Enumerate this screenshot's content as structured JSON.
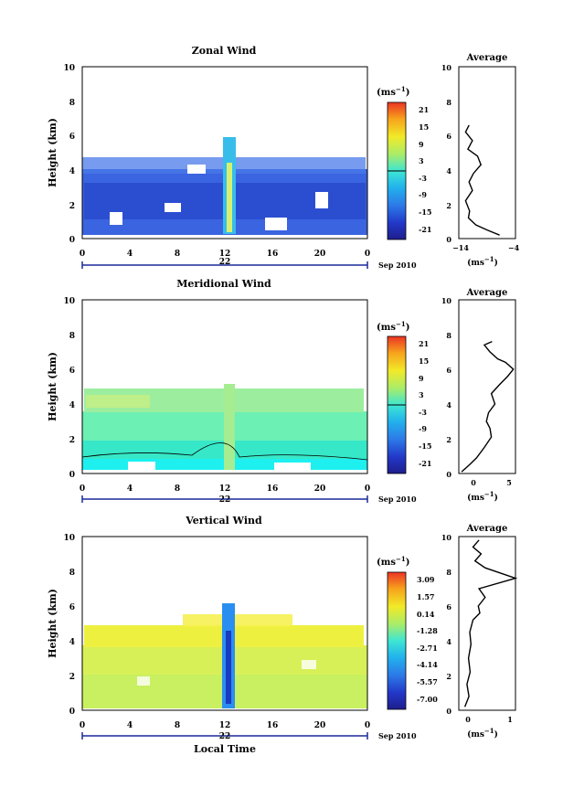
{
  "chart_data": [
    {
      "type": "heatmap",
      "title": "Zonal Wind",
      "ylabel": "Height (km)",
      "ylim": [
        0,
        10
      ],
      "yticks": [
        "0",
        "2",
        "4",
        "6",
        "8",
        "10"
      ],
      "xlim": [
        0,
        24
      ],
      "xticks": [
        "0",
        "4",
        "8",
        "12",
        "16",
        "20",
        "0"
      ],
      "day_label": "22",
      "date_label": "Sep 2010",
      "colorbar": {
        "unit": "(ms",
        "unit_exp": "−1",
        "ticks": [
          "21",
          "15",
          "9",
          "3",
          "-3",
          "-9",
          "-15",
          "-21"
        ]
      },
      "profile": {
        "title": "Average",
        "xlim": [
          -14,
          -4
        ],
        "xticks": [
          "−14",
          "−4"
        ],
        "xlabel": "(ms",
        "xlabel_exp": "−1",
        "points": [
          [
            -6.8,
            0.2
          ],
          [
            -9,
            0.5
          ],
          [
            -11,
            0.8
          ],
          [
            -12.3,
            1.2
          ],
          [
            -12.1,
            1.6
          ],
          [
            -12.8,
            2.2
          ],
          [
            -11.6,
            2.8
          ],
          [
            -12.2,
            3.3
          ],
          [
            -11.4,
            3.8
          ],
          [
            -10.1,
            4.3
          ],
          [
            -10.7,
            4.8
          ],
          [
            -12.4,
            5.2
          ],
          [
            -11.6,
            5.7
          ],
          [
            -12.8,
            6.2
          ],
          [
            -12.2,
            6.6
          ]
        ]
      }
    },
    {
      "type": "heatmap",
      "title": "Meridional Wind",
      "ylabel": "Height (km)",
      "ylim": [
        0,
        10
      ],
      "yticks": [
        "0",
        "2",
        "4",
        "6",
        "8",
        "10"
      ],
      "xlim": [
        0,
        24
      ],
      "xticks": [
        "0",
        "4",
        "8",
        "12",
        "16",
        "20",
        "0"
      ],
      "day_label": "22",
      "date_label": "Sep 2010",
      "colorbar": {
        "unit": "(ms",
        "unit_exp": "−1",
        "ticks": [
          "21",
          "15",
          "9",
          "3",
          "-3",
          "-9",
          "-15",
          "-21"
        ]
      },
      "profile": {
        "title": "Average",
        "xlim": [
          -2,
          6
        ],
        "xticks": [
          "0",
          "5"
        ],
        "xlabel": "(ms",
        "xlabel_exp": "−1",
        "points": [
          [
            -1.6,
            0.1
          ],
          [
            -0.5,
            0.5
          ],
          [
            0.5,
            0.9
          ],
          [
            1.6,
            1.5
          ],
          [
            2.6,
            2.1
          ],
          [
            2.4,
            2.6
          ],
          [
            1.9,
            3.0
          ],
          [
            2.2,
            3.5
          ],
          [
            3.1,
            4.0
          ],
          [
            2.6,
            4.6
          ],
          [
            3.7,
            5.1
          ],
          [
            4.9,
            5.6
          ],
          [
            5.7,
            6.0
          ],
          [
            4.6,
            6.4
          ],
          [
            3.5,
            6.6
          ],
          [
            2.4,
            7.0
          ],
          [
            1.6,
            7.4
          ],
          [
            2.7,
            7.6
          ]
        ]
      }
    },
    {
      "type": "heatmap",
      "title": "Vertical Wind",
      "ylabel": "Height (km)",
      "xlabel": "Local Time",
      "ylim": [
        0,
        10
      ],
      "yticks": [
        "0",
        "2",
        "4",
        "6",
        "8",
        "10"
      ],
      "xlim": [
        0,
        24
      ],
      "xticks": [
        "0",
        "4",
        "8",
        "12",
        "16",
        "20",
        "0"
      ],
      "day_label": "22",
      "date_label": "Sep 2010",
      "colorbar": {
        "unit": "(ms",
        "unit_exp": "−1",
        "ticks": [
          "3.09",
          "1.57",
          "0.14",
          "-1.28",
          "-2.71",
          "-4.14",
          "-5.57",
          "-7.00"
        ]
      },
      "profile": {
        "title": "Average",
        "xlim": [
          -0.2,
          1.2
        ],
        "xticks": [
          "0",
          "1"
        ],
        "xlabel": "(ms",
        "xlabel_exp": "−1",
        "points": [
          [
            -0.05,
            0.2
          ],
          [
            0.05,
            0.8
          ],
          [
            0.0,
            1.5
          ],
          [
            0.08,
            2.2
          ],
          [
            0.04,
            3.0
          ],
          [
            0.1,
            3.8
          ],
          [
            0.07,
            4.5
          ],
          [
            0.15,
            5.2
          ],
          [
            0.32,
            5.6
          ],
          [
            0.28,
            6.0
          ],
          [
            0.45,
            6.5
          ],
          [
            0.3,
            7.0
          ],
          [
            1.2,
            7.6
          ],
          [
            0.45,
            8.2
          ],
          [
            0.2,
            8.6
          ],
          [
            0.35,
            9.0
          ],
          [
            0.15,
            9.4
          ],
          [
            0.3,
            9.8
          ]
        ]
      }
    }
  ]
}
